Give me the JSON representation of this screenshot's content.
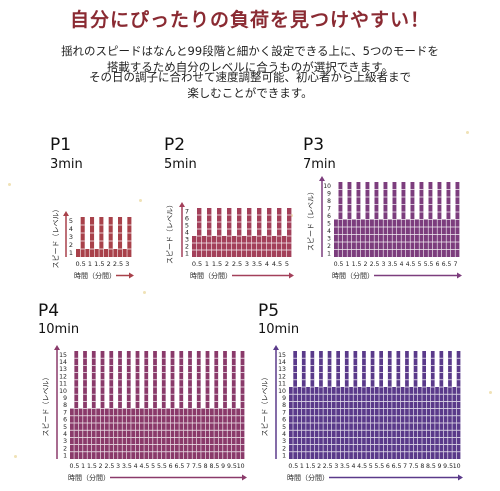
{
  "title": "自分にぴったりの負荷を見つけやすい！",
  "description": [
    "揺れのスピードはなんと99段階と細かく設定できる上に、5つのモードを",
    "搭載するため自分のレベルに合うものが選択できます。",
    "その日の調子に合わせて速度調整可能、初心者から上級者まで",
    "楽しむことができます。"
  ],
  "y_axis_label": "スピード（レベル）",
  "x_axis_label": "時間（分間）",
  "colors": {
    "title": "#8a2a32",
    "P1": "#a8414a",
    "P2": "#a3405a",
    "P3": "#7c3d7d",
    "P4": "#8a3a6a",
    "P5": "#5a3a8a"
  },
  "chart_data": [
    {
      "type": "bar",
      "name": "P1",
      "duration": "3min",
      "ylim": [
        0,
        5
      ],
      "yticks": [
        "1",
        "2",
        "3",
        "4",
        "5"
      ],
      "xticks": [
        "0.5",
        "1",
        "1.5",
        "2",
        "2.5",
        "3"
      ],
      "values": [
        1,
        5,
        1,
        5,
        1,
        5,
        1,
        5,
        1,
        5,
        1,
        5
      ]
    },
    {
      "type": "bar",
      "name": "P2",
      "duration": "5min",
      "ylim": [
        0,
        7
      ],
      "yticks": [
        "1",
        "2",
        "3",
        "4",
        "5",
        "6",
        "7"
      ],
      "xticks": [
        "0.5",
        "1",
        "1.5",
        "2",
        "2.5",
        "3",
        "3.5",
        "4",
        "4.5",
        "5"
      ],
      "values": [
        3,
        7,
        3,
        7,
        3,
        7,
        3,
        7,
        3,
        7,
        3,
        7,
        3,
        7,
        3,
        7,
        3,
        7,
        3,
        7
      ]
    },
    {
      "type": "bar",
      "name": "P3",
      "duration": "7min",
      "ylim": [
        0,
        10
      ],
      "yticks": [
        "1",
        "2",
        "3",
        "4",
        "5",
        "6",
        "7",
        "8",
        "9",
        "10"
      ],
      "xticks": [
        "0.5",
        "1",
        "1.5",
        "2",
        "2.5",
        "3",
        "3.5",
        "4",
        "4.5",
        "5",
        "5.5",
        "6",
        "6.5",
        "7"
      ],
      "values": [
        5,
        10,
        5,
        10,
        5,
        10,
        5,
        10,
        5,
        10,
        5,
        10,
        5,
        10,
        5,
        10,
        5,
        10,
        5,
        10,
        5,
        10,
        5,
        10,
        5,
        10,
        5,
        10
      ]
    },
    {
      "type": "bar",
      "name": "P4",
      "duration": "10min",
      "ylim": [
        0,
        15
      ],
      "yticks": [
        "1",
        "2",
        "3",
        "4",
        "5",
        "6",
        "7",
        "8",
        "9",
        "10",
        "11",
        "12",
        "13",
        "14",
        "15"
      ],
      "xticks": [
        "0.5",
        "1",
        "1.5",
        "2",
        "2.5",
        "3",
        "3.5",
        "4",
        "4.5",
        "5",
        "5.5",
        "6",
        "6.5",
        "7",
        "7.5",
        "8",
        "8.5",
        "9",
        "9.5",
        "10"
      ],
      "values": [
        7,
        15,
        7,
        15,
        7,
        15,
        7,
        15,
        7,
        15,
        7,
        15,
        7,
        15,
        7,
        15,
        7,
        15,
        7,
        15,
        7,
        15,
        7,
        15,
        7,
        15,
        7,
        15,
        7,
        15,
        7,
        15,
        7,
        15,
        7,
        15,
        7,
        15,
        7,
        15
      ]
    },
    {
      "type": "bar",
      "name": "P5",
      "duration": "10min",
      "ylim": [
        0,
        15
      ],
      "yticks": [
        "1",
        "2",
        "3",
        "4",
        "5",
        "6",
        "7",
        "8",
        "9",
        "10",
        "11",
        "12",
        "13",
        "14",
        "15"
      ],
      "xticks": [
        "0.5",
        "1",
        "1.5",
        "2",
        "2.5",
        "3",
        "3.5",
        "4",
        "4.5",
        "5",
        "5.5",
        "6",
        "6.5",
        "7",
        "7.5",
        "8",
        "8.5",
        "9",
        "9.5",
        "10"
      ],
      "values": [
        10,
        15,
        10,
        15,
        10,
        15,
        10,
        15,
        10,
        15,
        10,
        15,
        10,
        15,
        10,
        15,
        10,
        15,
        10,
        15,
        10,
        15,
        10,
        15,
        10,
        15,
        10,
        15,
        10,
        15,
        10,
        15,
        10,
        15,
        10,
        15,
        10,
        15,
        10,
        15
      ]
    }
  ]
}
